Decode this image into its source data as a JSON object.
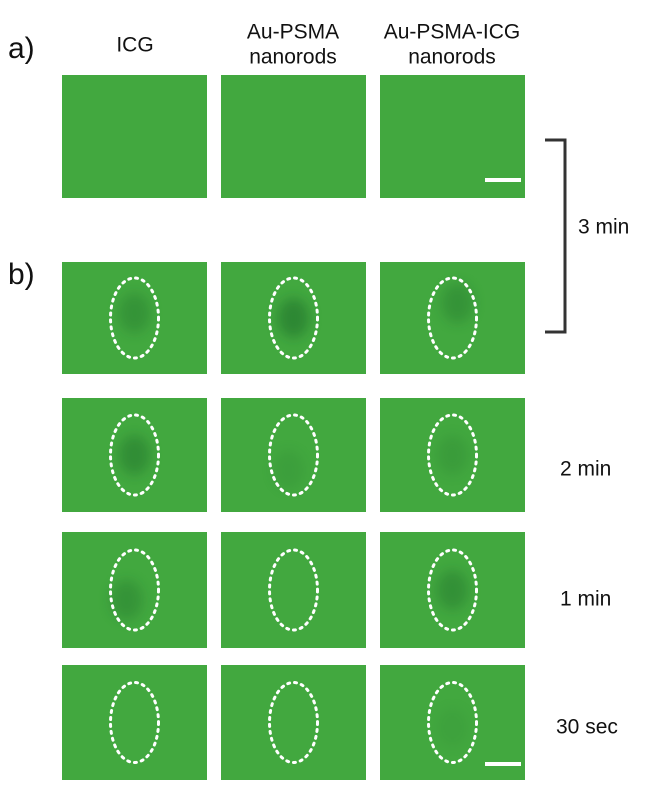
{
  "panel_labels": {
    "a": "a)",
    "b": "b)"
  },
  "columns": [
    {
      "lines": [
        "ICG"
      ]
    },
    {
      "lines": [
        "Au-PSMA",
        "nanorods"
      ]
    },
    {
      "lines": [
        "Au-PSMA-ICG",
        "nanorods"
      ]
    }
  ],
  "time_labels": [
    "3 min",
    "2 min",
    "1 min",
    "30 sec"
  ]
}
